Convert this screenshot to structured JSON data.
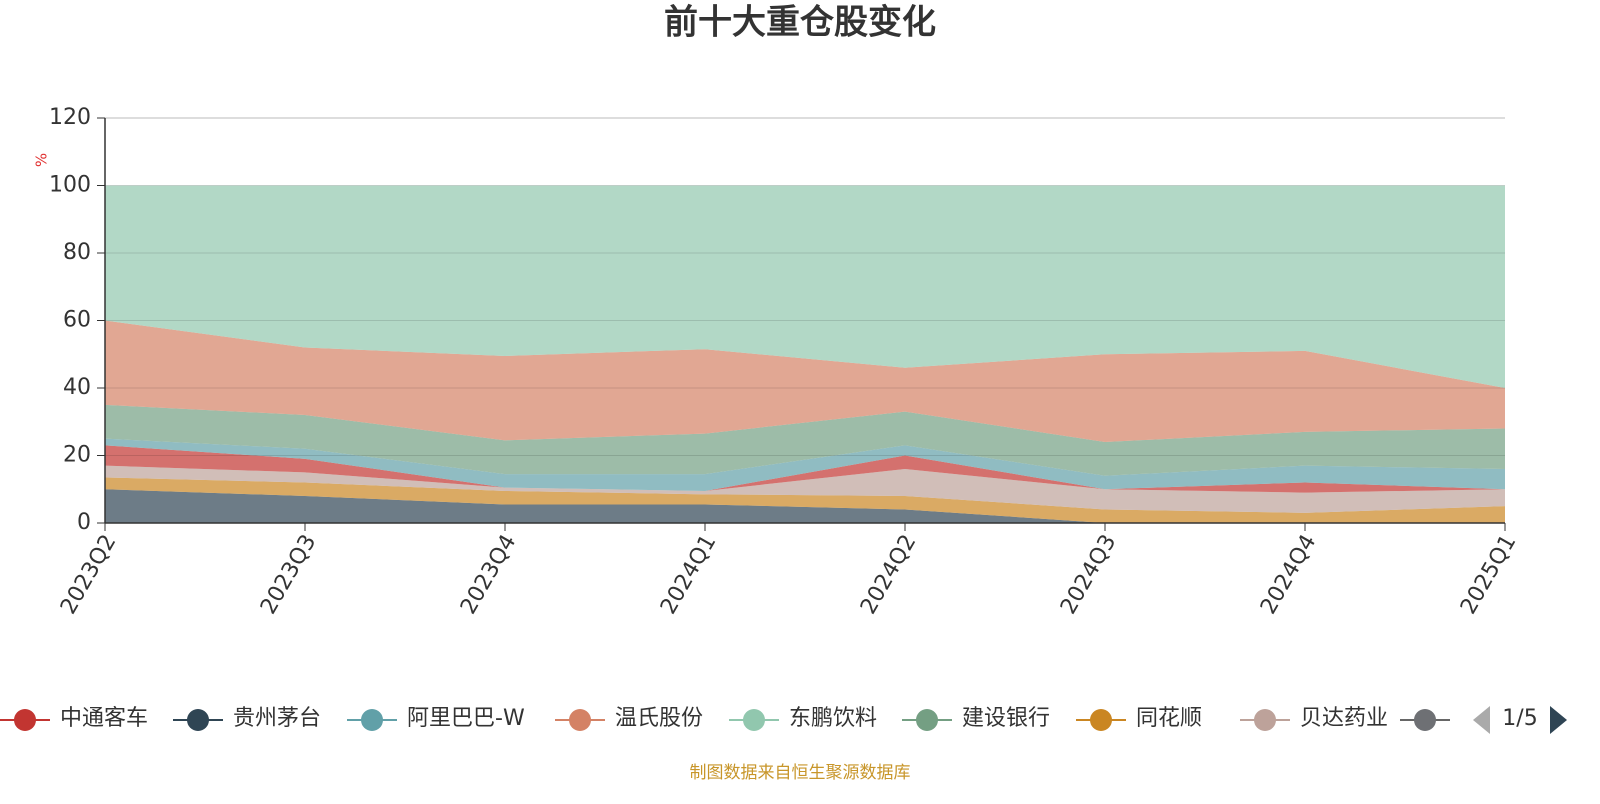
{
  "chart_data": {
    "type": "stacked_area",
    "title": "前十大重仓股变化",
    "y_label": "%",
    "categories": [
      "2023Q2",
      "2023Q3",
      "2023Q4",
      "2024Q1",
      "2024Q2",
      "2024Q3",
      "2024Q4",
      "2025Q1"
    ],
    "ylim": [
      0,
      120
    ],
    "yticks": [
      0,
      20,
      40,
      60,
      80,
      100,
      120
    ],
    "grid": true,
    "series": [
      {
        "name": "贵州茅台",
        "color": "#2f4554",
        "values": [
          10,
          8,
          5.5,
          5.5,
          4,
          0,
          0,
          0
        ]
      },
      {
        "name": "同花顺",
        "color": "#ca8622",
        "values": [
          3.5,
          4,
          4,
          3,
          4,
          4,
          3,
          5
        ]
      },
      {
        "name": "贝达药业",
        "color": "#bda29a",
        "values": [
          3.5,
          3,
          1,
          1,
          8,
          6,
          6,
          5
        ]
      },
      {
        "name": "中通客车",
        "color": "#c23531",
        "values": [
          6,
          4,
          0,
          0,
          4,
          0,
          3,
          0
        ]
      },
      {
        "name": "阿里巴巴-W",
        "color": "#61a0a8",
        "values": [
          2,
          3,
          4,
          5,
          3,
          4,
          5,
          6
        ]
      },
      {
        "name": "建设银行",
        "color": "#749f83",
        "values": [
          10,
          10,
          10,
          12,
          10,
          10,
          10,
          12
        ]
      },
      {
        "name": "温氏股份",
        "color": "#d48265",
        "values": [
          25,
          20,
          25,
          25,
          13,
          26,
          24,
          12
        ]
      },
      {
        "name": "东鹏饮料",
        "color": "#91c7ae",
        "values": [
          40,
          48,
          50.5,
          48.5,
          54,
          50,
          49,
          60
        ]
      }
    ],
    "legend_order": [
      3,
      0,
      4,
      6,
      7,
      5,
      1,
      2
    ],
    "legend_page": "1/5",
    "source": "制图数据来自恒生聚源数据库"
  }
}
